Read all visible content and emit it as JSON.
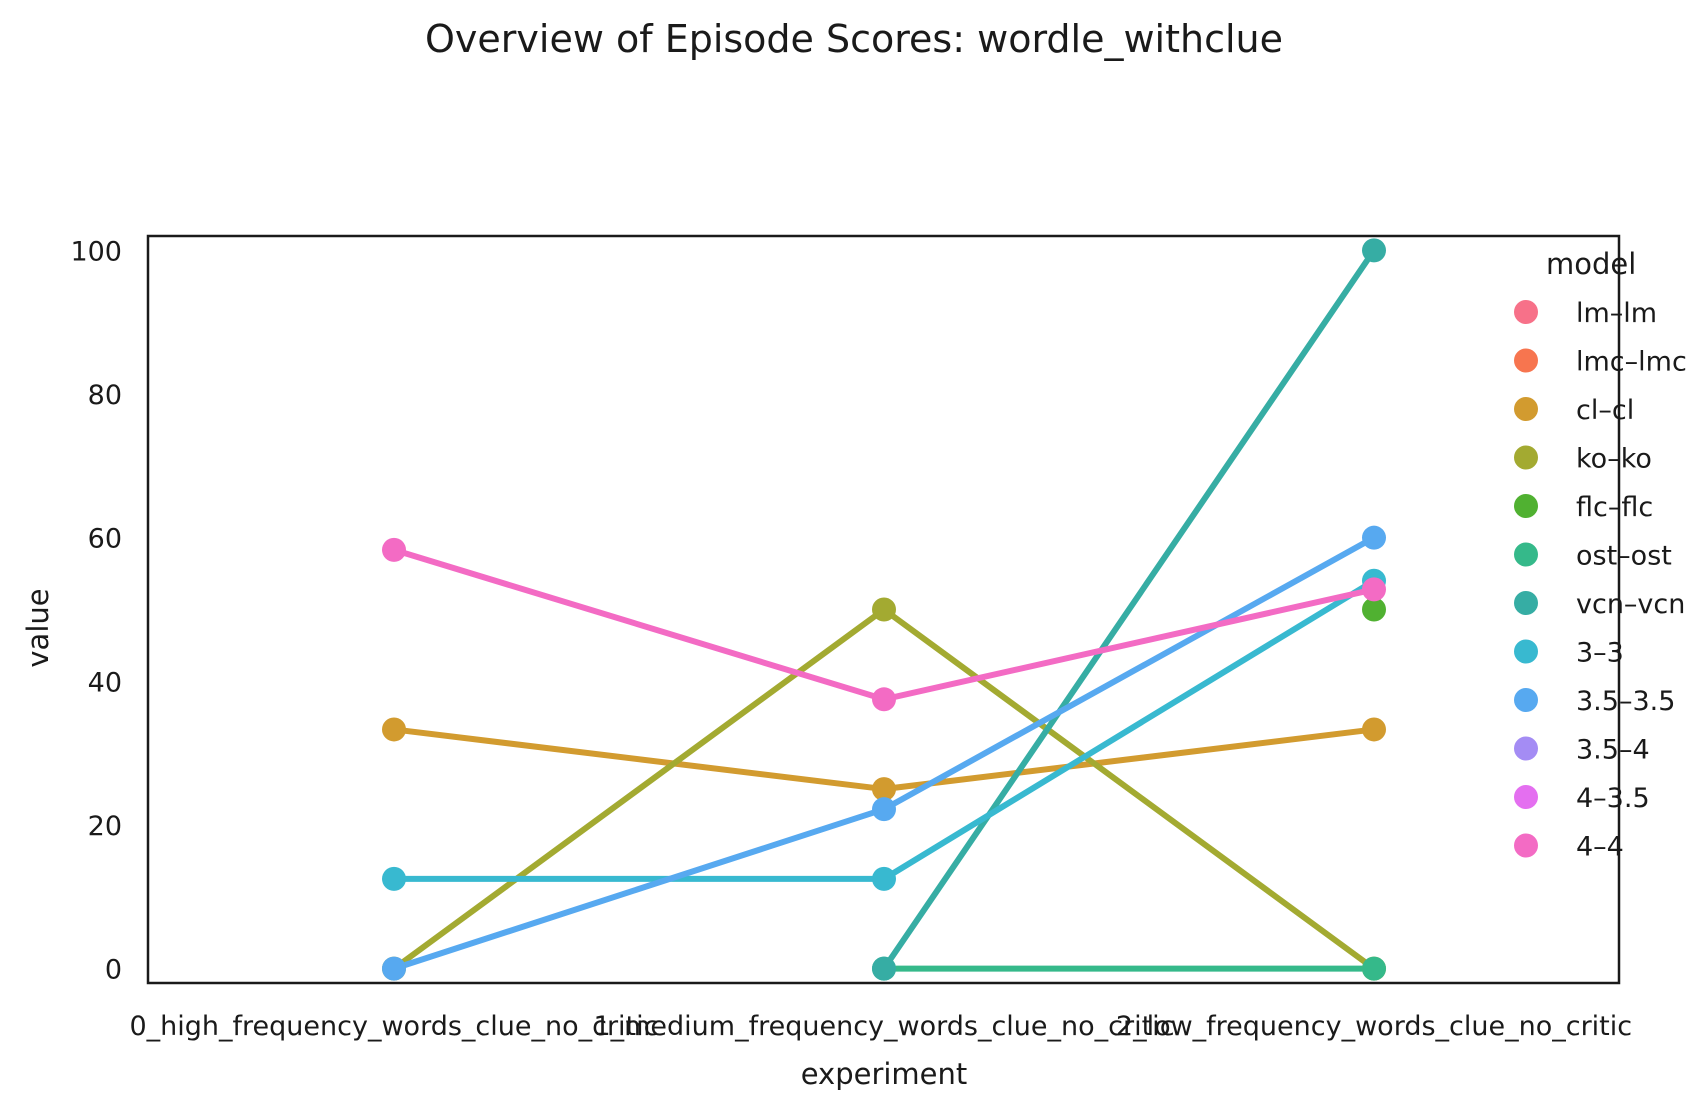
{
  "chart_data": {
    "type": "line",
    "title": "Overview of Episode Scores: wordle_withclue",
    "xlabel": "experiment",
    "ylabel": "value",
    "ylim": [
      -2,
      102
    ],
    "yticks": [
      "0",
      "20",
      "40",
      "60",
      "80",
      "100"
    ],
    "categories": [
      "0_high_frequency_words_clue_no_critic",
      "1_medium_frequency_words_clue_no_critic",
      "2_low_frequency_words_clue_no_critic"
    ],
    "legend": {
      "title": "model",
      "placement": "right"
    },
    "series": [
      {
        "name": "lm–lm",
        "color": "#f77189",
        "values": [
          null,
          null,
          null
        ]
      },
      {
        "name": "lmc–lmc",
        "color": "#f7754f",
        "values": [
          null,
          null,
          null
        ]
      },
      {
        "name": "cl–cl",
        "color": "#d29b2f",
        "values": [
          33.3,
          25,
          33.3
        ]
      },
      {
        "name": "ko–ko",
        "color": "#a3aa31",
        "values": [
          0,
          50,
          0
        ]
      },
      {
        "name": "flc–flc",
        "color": "#50b131",
        "values": [
          null,
          null,
          50
        ]
      },
      {
        "name": "ost–ost",
        "color": "#35b98a",
        "values": [
          null,
          0,
          0
        ]
      },
      {
        "name": "vcn–vcn",
        "color": "#36ada4",
        "values": [
          null,
          0,
          100
        ]
      },
      {
        "name": "3–3",
        "color": "#38b9d0",
        "values": [
          12.5,
          12.5,
          54
        ]
      },
      {
        "name": "3.5–3.5",
        "color": "#57a9f0",
        "values": [
          0,
          22.2,
          60
        ]
      },
      {
        "name": "3.5–4",
        "color": "#a48cf4",
        "values": [
          null,
          null,
          null
        ]
      },
      {
        "name": "4–3.5",
        "color": "#e46ff0",
        "values": [
          null,
          null,
          null
        ]
      },
      {
        "name": "4–4",
        "color": "#f36bc4",
        "values": [
          58.3,
          37.5,
          52.8
        ]
      }
    ]
  }
}
